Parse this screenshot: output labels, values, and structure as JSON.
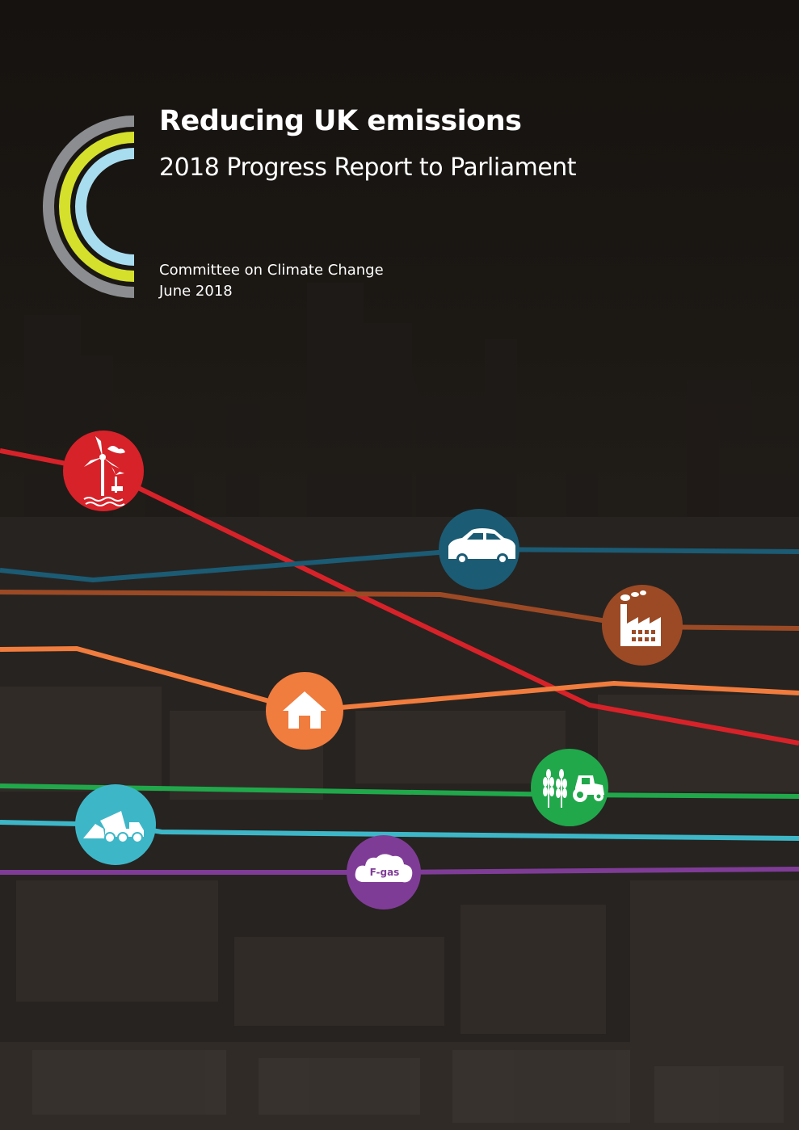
{
  "cover": {
    "title": "Reducing UK emissions",
    "subtitle": "2018 Progress Report to Parliament",
    "organisation": "Committee on Climate Change",
    "date": "June 2018"
  },
  "logo": {
    "icon": "ccc-logo-icon",
    "arc_colors": [
      "#8b8d90",
      "#d4e02b",
      "#a8dcef"
    ]
  },
  "sectors": [
    {
      "id": "power",
      "icon": "wind-turbine-icon",
      "color": "#d72229"
    },
    {
      "id": "surface-transport",
      "icon": "car-icon",
      "color": "#1b5b74"
    },
    {
      "id": "industry",
      "icon": "factory-icon",
      "color": "#9b4a25"
    },
    {
      "id": "buildings",
      "icon": "house-icon",
      "color": "#f07c3e"
    },
    {
      "id": "agriculture",
      "icon": "crops-tractor-icon",
      "color": "#20a84b"
    },
    {
      "id": "waste",
      "icon": "dump-truck-icon",
      "color": "#3db7c8"
    },
    {
      "id": "f-gas",
      "icon": "cloud-icon",
      "color": "#7f3c97",
      "label": "F-gas"
    }
  ]
}
